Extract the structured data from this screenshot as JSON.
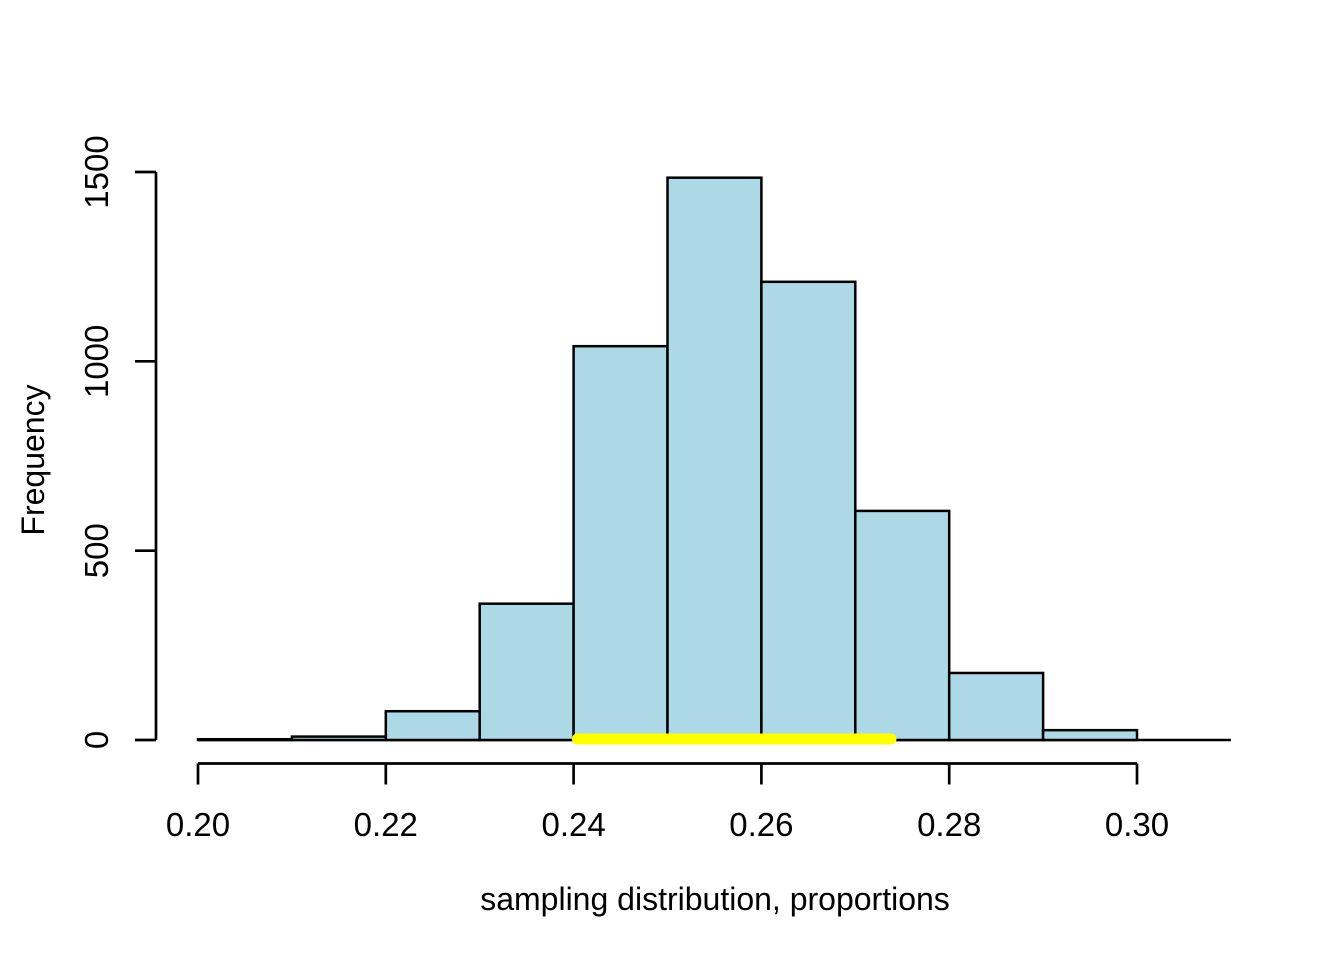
{
  "chart_data": {
    "type": "bar",
    "subtype": "histogram",
    "title": "",
    "xlabel": "sampling distribution, proportions",
    "ylabel": "Frequency",
    "bins": {
      "start": 0.2,
      "bin_width": 0.01,
      "edges": [
        0.2,
        0.21,
        0.22,
        0.23,
        0.24,
        0.25,
        0.26,
        0.27,
        0.28,
        0.29,
        0.3,
        0.31
      ],
      "counts": [
        2,
        9,
        76,
        360,
        1040,
        1485,
        1210,
        605,
        177,
        26,
        0
      ]
    },
    "x_ticks": [
      0.2,
      0.22,
      0.24,
      0.26,
      0.28,
      0.3
    ],
    "x_tick_labels": [
      "0.20",
      "0.22",
      "0.24",
      "0.26",
      "0.28",
      "0.30"
    ],
    "y_ticks": [
      0,
      500,
      1000,
      1500
    ],
    "y_tick_labels": [
      "0",
      "500",
      "1000",
      "1500"
    ],
    "xlim": [
      0.2,
      0.31
    ],
    "ylim": [
      0,
      1500
    ],
    "grid": false,
    "legend_position": "none",
    "colors": {
      "bar_fill": "#ADD8E6",
      "bar_stroke": "#000000",
      "axis": "#000000",
      "highlight": "#FFFF00",
      "background": "#FFFFFF"
    },
    "highlight_segment": {
      "x1": 0.2404,
      "x2": 0.2738,
      "y": 0,
      "color": "#FFFF00",
      "shape": "thick-rounded-line",
      "meaning": "interval overlay on x-axis baseline"
    }
  }
}
